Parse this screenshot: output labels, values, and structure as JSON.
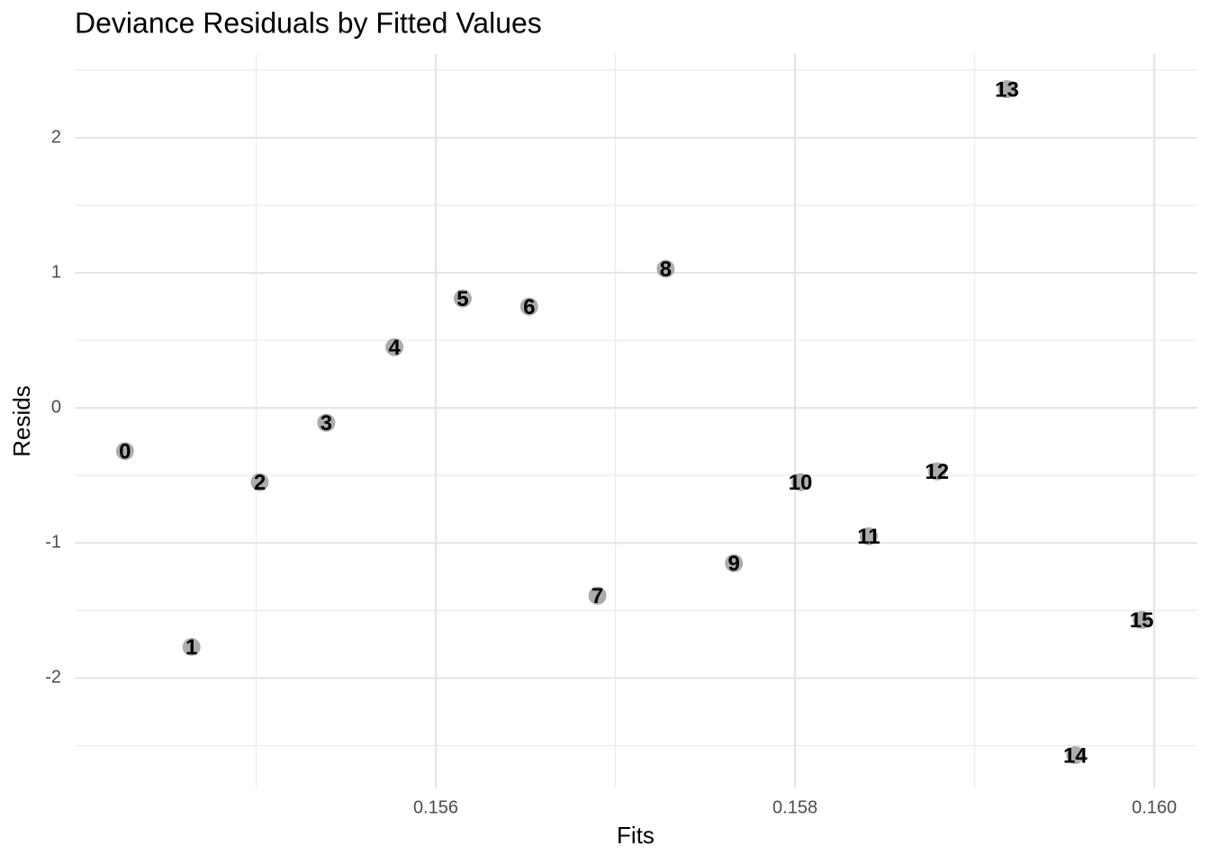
{
  "chart_data": {
    "type": "scatter",
    "title": "Deviance Residuals by Fitted Values",
    "x_label": "Fits",
    "y_label": "Resids",
    "point_labels": [
      "0",
      "1",
      "2",
      "3",
      "4",
      "5",
      "6",
      "7",
      "8",
      "9",
      "10",
      "11",
      "12",
      "13",
      "14",
      "15"
    ],
    "x": [
      0.15427,
      0.15464,
      0.15502,
      0.15539,
      0.15577,
      0.15615,
      0.15652,
      0.1569,
      0.15728,
      0.15766,
      0.15803,
      0.15841,
      0.15879,
      0.15918,
      0.15956,
      0.15993
    ],
    "values": [
      -0.32,
      -1.77,
      -0.55,
      -0.11,
      0.45,
      0.81,
      0.75,
      -1.39,
      1.03,
      -1.15,
      -0.55,
      -0.95,
      -0.47,
      2.36,
      -2.57,
      -1.57
    ],
    "color": "#9e9e9e",
    "xlim": [
      0.15399,
      0.16024
    ],
    "ylim": [
      -2.81,
      2.62
    ],
    "xticks": [
      0.156,
      0.158,
      {
        "value": 0.16,
        "label": "0.160"
      }
    ],
    "yticks": [
      -2,
      -1,
      0,
      1,
      2
    ],
    "x_minor_ticks": [
      0.155,
      0.157,
      0.159
    ],
    "y_minor_ticks": [
      -2.5,
      -1.5,
      -0.5,
      0.5,
      1.5,
      2.5
    ],
    "grid": true
  }
}
